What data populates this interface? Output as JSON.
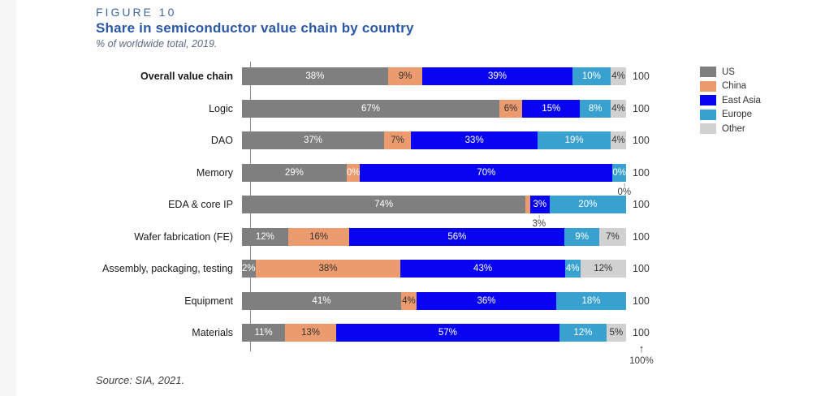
{
  "figure_label": "FIGURE 10",
  "title": "Share in semiconductor value chain by country",
  "subtitle": "% of worldwide total, 2019.",
  "source": "Source: SIA, 2021.",
  "legend": {
    "position": "right",
    "items": [
      {
        "name": "US",
        "color": "#7f7f7f"
      },
      {
        "name": "China",
        "color": "#ec9b6e"
      },
      {
        "name": "East Asia",
        "color": "#0803f0"
      },
      {
        "name": "Europe",
        "color": "#38a1cf"
      },
      {
        "name": "Other",
        "color": "#d1d1d1"
      }
    ]
  },
  "chart_data": {
    "type": "bar",
    "stacked": true,
    "orientation": "horizontal",
    "x_range": [
      0,
      100
    ],
    "row_total_label": "100",
    "series_names": [
      "US",
      "China",
      "East Asia",
      "Europe",
      "Other"
    ],
    "rows": [
      {
        "category": "Overall value chain",
        "bold": true,
        "values": {
          "US": 38,
          "China": 9,
          "East Asia": 39,
          "Europe": 10,
          "Other": 4
        }
      },
      {
        "category": "Logic",
        "values": {
          "US": 67,
          "China": 6,
          "East Asia": 15,
          "Europe": 8,
          "Other": 4
        }
      },
      {
        "category": "DAO",
        "values": {
          "US": 37,
          "China": 7,
          "East Asia": 33,
          "Europe": 19,
          "Other": 4
        }
      },
      {
        "category": "Memory",
        "values": {
          "US": 29,
          "China": 0,
          "East Asia": 70,
          "Europe": 0,
          "Other": 0
        },
        "render": {
          "China": {
            "w": 2,
            "label": "0%",
            "tc": "#ffffff"
          },
          "Europe": {
            "w": 2.6,
            "label": "0%"
          }
        }
      },
      {
        "category": "EDA & core IP",
        "values": {
          "US": 74,
          "China": 3,
          "East Asia": 3,
          "Europe": 20,
          "Other": 0
        },
        "render": {
          "China": {
            "w": 1.2,
            "label": ""
          },
          "East Asia": {
            "w": 5
          }
        }
      },
      {
        "category": "Wafer fabrication (FE)",
        "values": {
          "US": 12,
          "China": 16,
          "East Asia": 56,
          "Europe": 9,
          "Other": 7
        }
      },
      {
        "category": "Assembly, packaging, testing",
        "values": {
          "US": 2,
          "China": 38,
          "East Asia": 43,
          "Europe": 4,
          "Other": 12
        }
      },
      {
        "category": "Equipment",
        "values": {
          "US": 41,
          "China": 4,
          "East Asia": 36,
          "Europe": 18,
          "Other": 0
        }
      },
      {
        "category": "Materials",
        "values": {
          "US": 11,
          "China": 13,
          "East Asia": 57,
          "Europe": 12,
          "Other": 5
        }
      }
    ],
    "callouts": [
      {
        "category": "Memory",
        "text": "0%",
        "x_pct": 97
      },
      {
        "category": "EDA & core IP",
        "text": "3%",
        "x_pct": 74.8
      },
      {
        "position": "below-last-bar-end",
        "arrow": "↑",
        "text": "100%"
      }
    ]
  }
}
